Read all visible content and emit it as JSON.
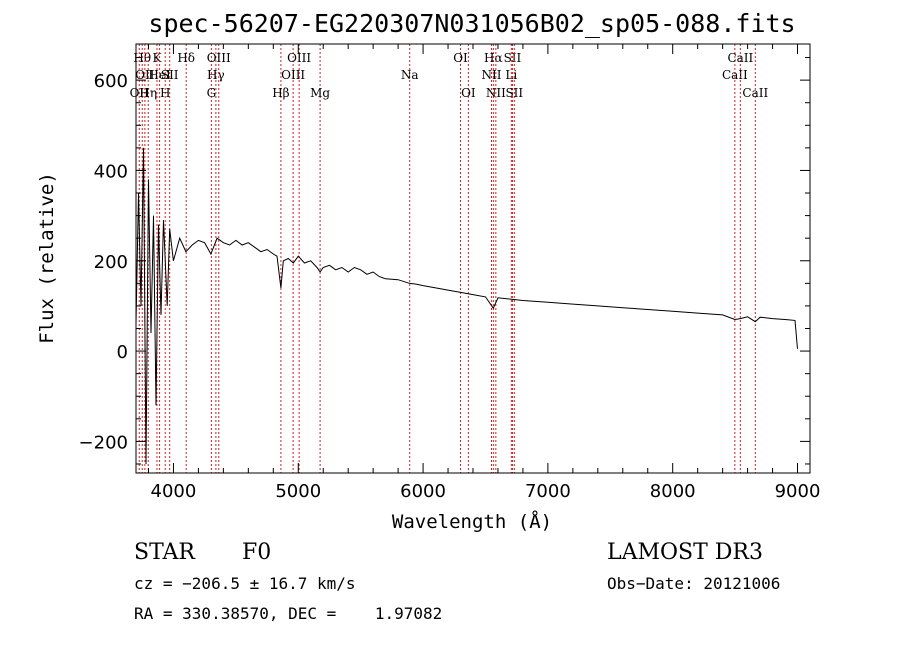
{
  "chart_data": {
    "type": "line",
    "title": "spec-56207-EG220307N031056B02_sp05-088.fits",
    "xlabel": "Wavelength (Å)",
    "ylabel": "Flux (relative)",
    "xlim": [
      3700,
      9100
    ],
    "ylim": [
      -270,
      680
    ],
    "xticks": [
      4000,
      5000,
      6000,
      7000,
      8000,
      9000
    ],
    "yticks": [
      -200,
      0,
      200,
      400,
      600
    ],
    "series": [
      {
        "name": "flux",
        "x": [
          3700,
          3720,
          3740,
          3760,
          3780,
          3800,
          3820,
          3840,
          3860,
          3880,
          3900,
          3920,
          3950,
          3970,
          4000,
          4050,
          4100,
          4150,
          4200,
          4250,
          4300,
          4350,
          4400,
          4450,
          4500,
          4550,
          4600,
          4650,
          4700,
          4750,
          4800,
          4830,
          4861,
          4880,
          4920,
          4960,
          5000,
          5050,
          5100,
          5150,
          5175,
          5200,
          5250,
          5300,
          5350,
          5400,
          5450,
          5500,
          5550,
          5600,
          5650,
          5700,
          5800,
          5890,
          5950,
          6000,
          6100,
          6200,
          6300,
          6400,
          6500,
          6563,
          6600,
          6700,
          6800,
          7000,
          7200,
          7400,
          7600,
          7800,
          8000,
          8200,
          8400,
          8498,
          8542,
          8600,
          8662,
          8700,
          8800,
          8900,
          8980,
          9000
        ],
        "y": [
          60,
          350,
          100,
          450,
          -250,
          380,
          40,
          300,
          -120,
          280,
          80,
          290,
          100,
          270,
          200,
          250,
          220,
          235,
          245,
          240,
          215,
          250,
          240,
          235,
          245,
          235,
          240,
          230,
          220,
          225,
          215,
          210,
          140,
          200,
          205,
          195,
          210,
          195,
          200,
          185,
          175,
          185,
          190,
          180,
          185,
          175,
          185,
          180,
          170,
          175,
          165,
          160,
          158,
          150,
          148,
          145,
          140,
          135,
          130,
          125,
          120,
          95,
          118,
          115,
          112,
          108,
          104,
          100,
          96,
          92,
          88,
          84,
          80,
          70,
          72,
          76,
          65,
          75,
          72,
          70,
          68,
          5
        ]
      }
    ],
    "lines": [
      {
        "wave": 3726,
        "label": "OII",
        "row": 3
      },
      {
        "wave": 3750,
        "label": "Hθ",
        "row": 1
      },
      {
        "wave": 3771,
        "label": "OII",
        "row": 2
      },
      {
        "wave": 3798,
        "label": "Hη",
        "row": 3
      },
      {
        "wave": 3868,
        "label": "K",
        "row": 1
      },
      {
        "wave": 3889,
        "label": "HeI",
        "row": 2
      },
      {
        "wave": 3934,
        "label": "H",
        "row": 3
      },
      {
        "wave": 3970,
        "label": "SII",
        "row": 2
      },
      {
        "wave": 4102,
        "label": "Hδ",
        "row": 1
      },
      {
        "wave": 4304,
        "label": "G",
        "row": 3
      },
      {
        "wave": 4340,
        "label": "Hγ",
        "row": 2
      },
      {
        "wave": 4363,
        "label": "OIII",
        "row": 1
      },
      {
        "wave": 4861,
        "label": "Hβ",
        "row": 3
      },
      {
        "wave": 4959,
        "label": "OIII",
        "row": 2
      },
      {
        "wave": 5007,
        "label": "OIII",
        "row": 1
      },
      {
        "wave": 5175,
        "label": "Mg",
        "row": 3
      },
      {
        "wave": 5893,
        "label": "Na",
        "row": 2
      },
      {
        "wave": 6300,
        "label": "OI",
        "row": 1
      },
      {
        "wave": 6363,
        "label": "OI",
        "row": 3
      },
      {
        "wave": 6548,
        "label": "NII",
        "row": 2
      },
      {
        "wave": 6563,
        "label": "Hα",
        "row": 1
      },
      {
        "wave": 6583,
        "label": "NII",
        "row": 3
      },
      {
        "wave": 6707,
        "label": "Li",
        "row": 2
      },
      {
        "wave": 6716,
        "label": "SII",
        "row": 1
      },
      {
        "wave": 6731,
        "label": "SII",
        "row": 3
      },
      {
        "wave": 8498,
        "label": "CaII",
        "row": 2
      },
      {
        "wave": 8542,
        "label": "CaII",
        "row": 1
      },
      {
        "wave": 8662,
        "label": "CaII",
        "row": 3
      }
    ]
  },
  "info": {
    "class_label": "STAR",
    "subclass": "F0",
    "survey": "LAMOST DR3",
    "cz": "cz = −206.5 ± 16.7 km/s",
    "obs_date": "Obs−Date: 20121006",
    "coords": "RA = 330.38570, DEC =    1.97082"
  },
  "colors": {
    "line_marker": "#cc2222",
    "spectrum": "#000000"
  }
}
